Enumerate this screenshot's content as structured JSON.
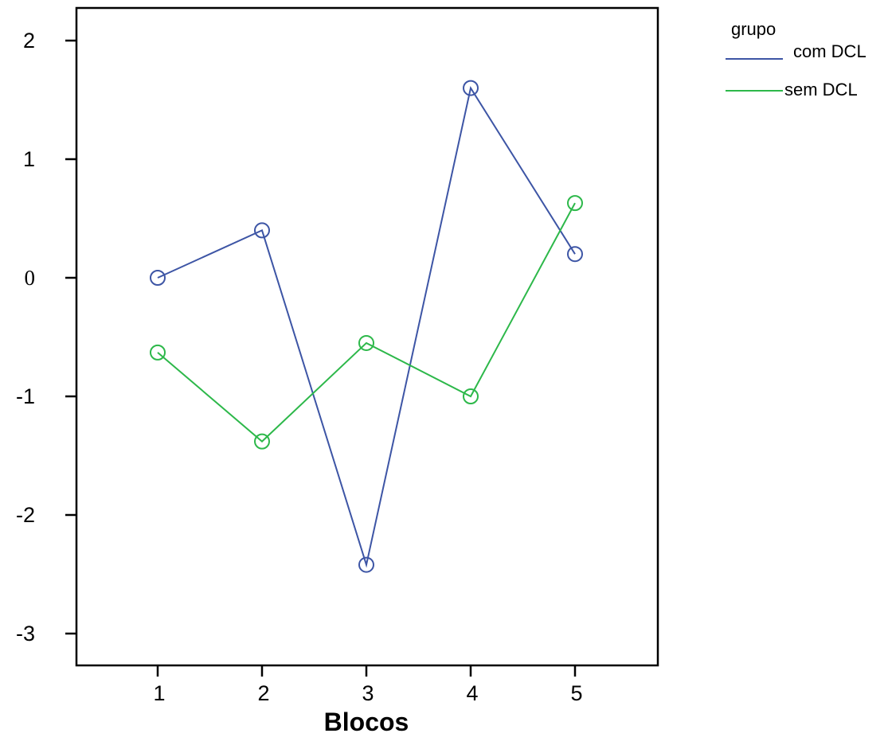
{
  "chart_data": {
    "type": "line",
    "title": "",
    "xlabel": "Blocos",
    "ylabel": "",
    "categories": [
      "1",
      "2",
      "3",
      "4",
      "5"
    ],
    "y_ticks": [
      "2",
      "1",
      "0",
      "-1",
      "-2",
      "-3"
    ],
    "ylim": [
      -3.35,
      2.3
    ],
    "grid": false,
    "legend": {
      "title": "grupo",
      "placement": "top-right outside"
    },
    "series": [
      {
        "name": "com DCL",
        "color": "#3d55a5",
        "marker": "open-circle",
        "values": [
          0.0,
          0.4,
          -2.42,
          1.6,
          0.2
        ]
      },
      {
        "name": "sem DCL",
        "color": "#2db84a",
        "marker": "open-circle",
        "values": [
          -0.63,
          -1.38,
          -0.55,
          -1.0,
          0.63
        ]
      }
    ]
  }
}
